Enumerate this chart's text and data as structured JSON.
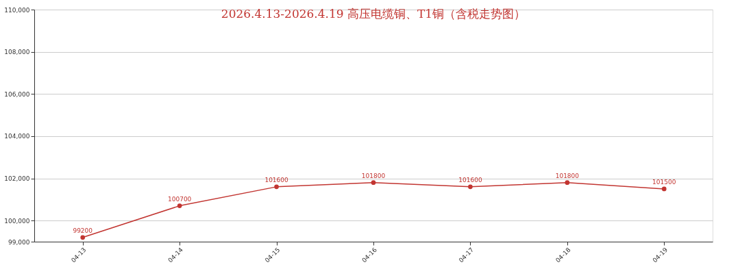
{
  "chart_data": {
    "type": "line",
    "title": "2026.4.13-2026.4.19     高压电缆铜、T1铜（含税走势图）",
    "categories": [
      "04-13",
      "04-14",
      "04-15",
      "04-16",
      "04-17",
      "04-18",
      "04-19"
    ],
    "series": [
      {
        "color": "#c23531",
        "values": [
          99200,
          100700,
          101600,
          101800,
          101600,
          101800,
          101500
        ]
      }
    ],
    "ylim": [
      99000,
      110000
    ],
    "yticks": [
      {
        "value": 99000,
        "label": "99,000"
      },
      {
        "value": 100000,
        "label": "100,000"
      },
      {
        "value": 102000,
        "label": "102,000"
      },
      {
        "value": 104000,
        "label": "104,000"
      },
      {
        "value": 106000,
        "label": "106,000"
      },
      {
        "value": 108000,
        "label": "108,000"
      },
      {
        "value": 110000,
        "label": "110,000"
      }
    ],
    "grid": "y",
    "marker": "circle",
    "line_style": "solid",
    "data_labels": true
  }
}
